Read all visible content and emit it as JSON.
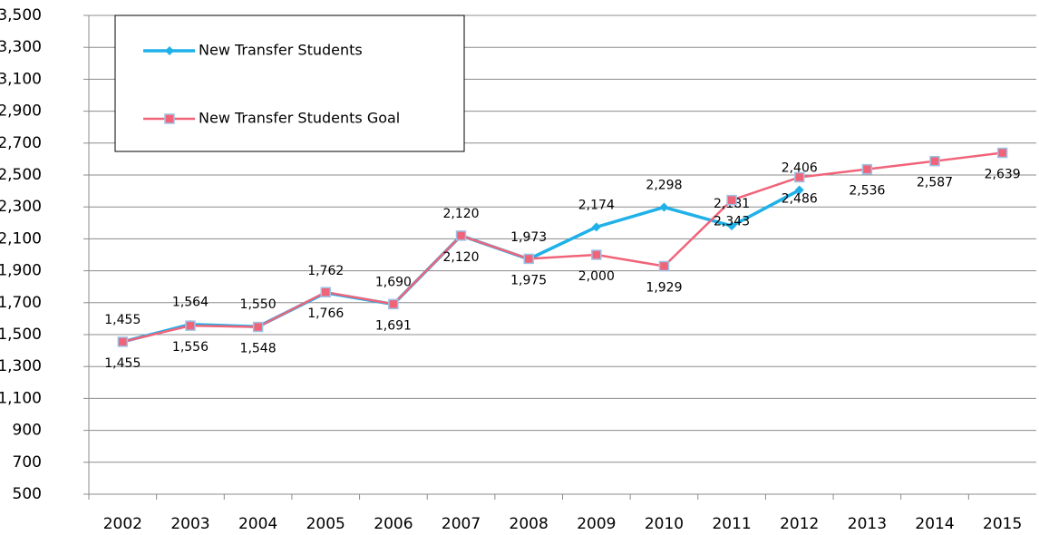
{
  "chart_data": {
    "type": "line",
    "categories": [
      "2002",
      "2003",
      "2004",
      "2005",
      "2006",
      "2007",
      "2008",
      "2009",
      "2010",
      "2011",
      "2012",
      "2013",
      "2014",
      "2015"
    ],
    "series": [
      {
        "name": "New Transfer Students",
        "color": "#1fb1e8",
        "marker": "diamond",
        "values": [
          1455,
          1564,
          1550,
          1762,
          1690,
          2120,
          1973,
          2174,
          2298,
          2181,
          2406,
          null,
          null,
          null
        ],
        "value_labels": [
          "1,455",
          "1,564",
          "1,550",
          "1,762",
          "1,690",
          "2,120",
          "1,973",
          "2,174",
          "2,298",
          "2,181",
          "2,406",
          null,
          null,
          null
        ]
      },
      {
        "name": "New Transfer Students Goal",
        "color": "#f0647a",
        "marker": "square",
        "values": [
          1455,
          1556,
          1548,
          1766,
          1691,
          2120,
          1975,
          2000,
          1929,
          2343,
          2486,
          2536,
          2587,
          2639
        ],
        "value_labels": [
          "1,455",
          "1,556",
          "1,548",
          "1,766",
          "1,691",
          "2,120",
          "1,975",
          "2,000",
          "1,929",
          "2,343",
          "2,486",
          "2,536",
          "2,587",
          "2,639"
        ]
      }
    ],
    "ylim": [
      500,
      3500
    ],
    "yticks": [
      500,
      700,
      900,
      {
        "value": 1100,
        "label": "1,100"
      },
      {
        "value": 1300,
        "label": "1,300"
      },
      {
        "value": 1500,
        "label": "1,500"
      },
      {
        "value": 1700,
        "label": "1,700"
      },
      {
        "value": 1900,
        "label": "1,900"
      },
      {
        "value": 2100,
        "label": "2,100"
      },
      {
        "value": 2300,
        "label": "2,300"
      },
      {
        "value": 2500,
        "label": "2,500"
      },
      {
        "value": 2700,
        "label": "2,700"
      },
      {
        "value": 2900,
        "label": "2,900"
      },
      {
        "value": 3100,
        "label": "3,100"
      },
      {
        "value": 3300,
        "label": "3,300"
      },
      {
        "value": 3500,
        "label": "3,500"
      }
    ],
    "grid": true,
    "legend": "upper left"
  }
}
